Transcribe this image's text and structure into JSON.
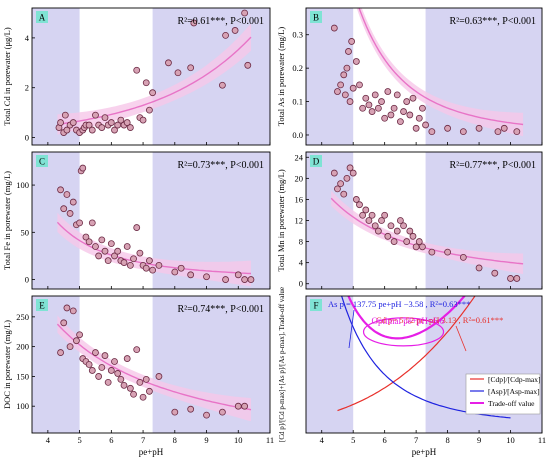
{
  "chart_data": [
    {
      "id": "A",
      "type": "scatter",
      "ylabel": "Total Cd in porewater (μg/L)",
      "stat_label": "R²=0.61***,  P<0.001",
      "xlim": [
        3.5,
        11
      ],
      "ylim": [
        -0.3,
        5.2
      ],
      "xticks": [
        4,
        5,
        6,
        7,
        8,
        9,
        10,
        11
      ],
      "yticks": [
        0,
        2,
        4
      ],
      "shade": [
        [
          3.5,
          5.0
        ],
        [
          7.3,
          11
        ]
      ],
      "fit": {
        "kind": "exp",
        "a": 0.125,
        "b": 0.334,
        "from": 4.3,
        "to": 10.4,
        "band": 0.28
      },
      "x": [
        4.35,
        4.4,
        4.5,
        4.55,
        4.6,
        4.7,
        4.8,
        4.9,
        5.0,
        5.1,
        5.15,
        5.2,
        5.3,
        5.4,
        5.5,
        5.6,
        5.7,
        5.8,
        5.9,
        6.0,
        6.1,
        6.2,
        6.3,
        6.4,
        6.5,
        6.6,
        6.8,
        6.9,
        7.0,
        7.1,
        7.2,
        7.3,
        7.8,
        8.1,
        8.5,
        8.6,
        9.5,
        9.6,
        9.9,
        10.2,
        10.3
      ],
      "y": [
        0.4,
        0.6,
        0.2,
        0.9,
        0.3,
        0.5,
        0.6,
        0.3,
        0.2,
        0.3,
        0.4,
        0.5,
        0.5,
        0.3,
        0.9,
        0.5,
        0.4,
        0.8,
        0.5,
        0.6,
        0.3,
        0.5,
        0.7,
        0.5,
        0.6,
        0.4,
        2.7,
        0.8,
        0.7,
        2.2,
        1.1,
        1.8,
        3.0,
        2.6,
        2.8,
        4.6,
        2.1,
        4.1,
        4.3,
        5.0,
        2.9
      ]
    },
    {
      "id": "B",
      "type": "scatter",
      "ylabel": "Total As in porewater (mg/L)",
      "stat_label": "R²=0.63***,  P<0.001",
      "xlim": [
        3.5,
        11
      ],
      "ylim": [
        -0.03,
        0.38
      ],
      "xticks": [
        4,
        5,
        6,
        7,
        8,
        9,
        10,
        11
      ],
      "yticks": [
        0.0,
        0.1,
        0.2,
        0.3
      ],
      "shade": [
        [
          3.5,
          5.0
        ],
        [
          7.3,
          11
        ]
      ],
      "fit": {
        "kind": "pow",
        "a": 137.75,
        "b": -3.58,
        "from": 4.3,
        "to": 10.4,
        "band": 0.018
      },
      "x": [
        4.4,
        4.5,
        4.6,
        4.7,
        4.75,
        4.8,
        4.85,
        4.9,
        4.95,
        5.0,
        5.1,
        5.2,
        5.3,
        5.4,
        5.5,
        5.6,
        5.7,
        5.8,
        5.9,
        6.0,
        6.1,
        6.2,
        6.3,
        6.4,
        6.5,
        6.6,
        6.7,
        6.8,
        6.9,
        7.0,
        7.1,
        7.2,
        7.3,
        7.5,
        8.0,
        8.5,
        9.0,
        9.6,
        9.8,
        10.2
      ],
      "y": [
        0.32,
        0.13,
        0.15,
        0.18,
        0.12,
        0.2,
        0.25,
        0.1,
        0.28,
        0.14,
        0.22,
        0.15,
        0.08,
        0.11,
        0.09,
        0.07,
        0.12,
        0.08,
        0.1,
        0.05,
        0.13,
        0.06,
        0.08,
        0.12,
        0.04,
        0.07,
        0.1,
        0.06,
        0.11,
        0.02,
        0.05,
        0.08,
        0.03,
        0.01,
        0.02,
        0.01,
        0.02,
        0.01,
        0.02,
        0.01
      ]
    },
    {
      "id": "C",
      "type": "scatter",
      "ylabel": "Total Fe in porewater (mg/L)",
      "stat_label": "R²=0.73***, P<0.001",
      "xlim": [
        3.5,
        11
      ],
      "ylim": [
        -10,
        135
      ],
      "xticks": [
        4,
        5,
        6,
        7,
        8,
        9,
        10,
        11
      ],
      "yticks": [
        0,
        50,
        100
      ],
      "shade": [
        [
          3.5,
          5.0
        ],
        [
          7.3,
          11
        ]
      ],
      "fit": {
        "kind": "pow",
        "a": 2500,
        "b": -2.55,
        "from": 4.3,
        "to": 10.4,
        "band": 7
      },
      "x": [
        4.4,
        4.5,
        4.6,
        4.7,
        4.8,
        4.9,
        5.0,
        5.05,
        5.1,
        5.2,
        5.3,
        5.4,
        5.5,
        5.6,
        5.7,
        5.8,
        5.9,
        6.0,
        6.1,
        6.2,
        6.3,
        6.4,
        6.5,
        6.6,
        6.7,
        6.8,
        6.9,
        7.0,
        7.1,
        7.2,
        7.3,
        7.5,
        8.0,
        8.2,
        8.5,
        9.0,
        9.6,
        10.0,
        10.2,
        10.4
      ],
      "y": [
        95,
        75,
        90,
        70,
        82,
        58,
        60,
        115,
        118,
        45,
        40,
        60,
        35,
        25,
        42,
        30,
        20,
        38,
        25,
        30,
        20,
        18,
        35,
        15,
        22,
        55,
        28,
        15,
        12,
        20,
        10,
        15,
        8,
        12,
        5,
        3,
        0,
        5,
        0,
        0
      ]
    },
    {
      "id": "D",
      "type": "scatter",
      "ylabel": "Total Mn in porewater (mg/L)",
      "stat_label": "R²=0.77***, P<0.001",
      "xlim": [
        3.5,
        11
      ],
      "ylim": [
        -1,
        25
      ],
      "xticks": [
        4,
        5,
        6,
        7,
        8,
        9,
        10,
        11
      ],
      "yticks": [
        0,
        4,
        8,
        12,
        16,
        20,
        24
      ],
      "shade": [
        [
          3.5,
          5.0
        ],
        [
          7.3,
          11
        ]
      ],
      "fit": {
        "kind": "pow",
        "a": 180,
        "b": -1.65,
        "from": 4.3,
        "to": 10.4,
        "band": 1.0
      },
      "x": [
        4.4,
        4.5,
        4.6,
        4.7,
        4.8,
        4.9,
        5.0,
        5.1,
        5.2,
        5.3,
        5.4,
        5.5,
        5.6,
        5.7,
        5.8,
        5.9,
        6.0,
        6.1,
        6.2,
        6.3,
        6.4,
        6.5,
        6.6,
        6.7,
        6.8,
        6.9,
        7.0,
        7.1,
        7.2,
        7.5,
        8.0,
        8.5,
        9.0,
        9.5,
        10.0,
        10.2
      ],
      "y": [
        21,
        18,
        19,
        17,
        20,
        22,
        21,
        16,
        15,
        13,
        14,
        12,
        13,
        11,
        10,
        12,
        13,
        9,
        11,
        8,
        10,
        12,
        11,
        8,
        10,
        9,
        7,
        8,
        7,
        6,
        6,
        5,
        3,
        2,
        1,
        1
      ]
    },
    {
      "id": "E",
      "type": "scatter",
      "ylabel": "DOC in porewater (mg/L)",
      "stat_label": "R²=0.74***, P<0.001",
      "xlabel": "pe+pH",
      "xlim": [
        3.5,
        11
      ],
      "ylim": [
        55,
        285
      ],
      "xticks": [
        4,
        5,
        6,
        7,
        8,
        9,
        10,
        11
      ],
      "yticks": [
        100,
        150,
        200,
        250
      ],
      "shade": [
        [
          3.5,
          5.0
        ],
        [
          7.3,
          11
        ]
      ],
      "fit": {
        "kind": "pow",
        "a": 1100,
        "b": -1.05,
        "from": 4.3,
        "to": 10.4,
        "band": 10
      },
      "x": [
        4.4,
        4.5,
        4.6,
        4.7,
        4.8,
        4.9,
        5.0,
        5.1,
        5.2,
        5.3,
        5.4,
        5.5,
        5.6,
        5.7,
        5.8,
        5.9,
        6.0,
        6.1,
        6.2,
        6.3,
        6.4,
        6.5,
        6.6,
        6.7,
        6.8,
        6.9,
        7.0,
        7.1,
        7.2,
        7.5,
        8.0,
        8.5,
        9.0,
        9.5,
        10.0,
        10.2
      ],
      "y": [
        190,
        240,
        265,
        200,
        260,
        210,
        220,
        180,
        175,
        170,
        160,
        190,
        150,
        165,
        185,
        140,
        160,
        175,
        155,
        145,
        135,
        180,
        130,
        120,
        195,
        140,
        115,
        145,
        125,
        150,
        90,
        95,
        85,
        90,
        100,
        100
      ]
    },
    {
      "id": "F",
      "type": "line",
      "ylabel": "[Cd p]/[Cd p-max]+[As p]/[As p-max], Trade-off value",
      "xlabel": "pe+pH",
      "xlim": [
        3.5,
        11
      ],
      "ylim": [
        -0.05,
        0.95
      ],
      "xticks": [
        4,
        5,
        6,
        7,
        8,
        9,
        10,
        11
      ],
      "shade": [
        [
          3.5,
          5.0
        ],
        [
          7.3,
          11
        ]
      ],
      "series": [
        {
          "name": "[Cdp]/[Cdp-max]",
          "kind": "pow",
          "a": 5.52,
          "b": 3.13,
          "norm": 5381,
          "from": 4.5,
          "to": 10.0
        },
        {
          "name": "[Asp]/[Asp-max]",
          "kind": "pow",
          "a": 137.75,
          "b": -3.58,
          "norm": 0.6,
          "from": 4.5,
          "to": 10.0
        },
        {
          "name": "Trade-off value",
          "kind": "sum",
          "from": 4.5,
          "to": 10.0
        }
      ],
      "annotations": {
        "as_eq": "As p = 137.75 pe+pH −3.58 , R²=0.63***",
        "cd_eq": "Cd p= 5.52 pe+pH 3.13 , R²=0.61***",
        "optimal": "Optimal pe+pH=6.6"
      },
      "optimal_x": 6.6
    }
  ],
  "colors": {
    "shade": "#c8c6ee",
    "point_fill": "#d7a2b4",
    "point_stroke": "#6b2a44",
    "fit_line": "#e874c7",
    "fit_band": "#f6c7e8",
    "stat_text": "#000000",
    "panel_tag_bg": "#7fe3d4",
    "cd_curve": "#e8302b",
    "as_curve": "#1f23e0",
    "trade_curve": "#e61fe6",
    "cd_text": "#e8302b",
    "as_text": "#1f23e0",
    "opt_text": "#e61fe6"
  }
}
